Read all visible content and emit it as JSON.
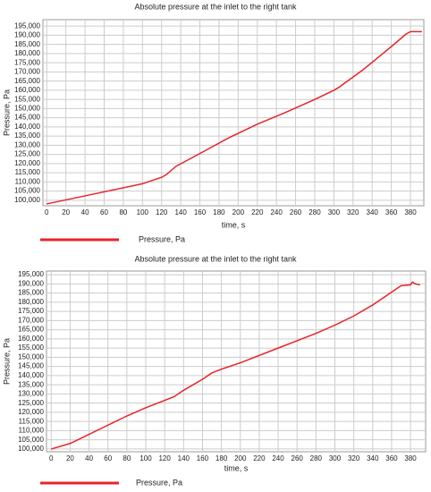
{
  "chart_data": [
    {
      "type": "line",
      "title": "Absolute pressure at the inlet to the right tank",
      "x_label": "time, s",
      "y_label": "Pressure, Pa",
      "grid": true,
      "xlim": [
        -4,
        394
      ],
      "ylim": [
        97000,
        198500
      ],
      "xticks": [
        0,
        20,
        40,
        60,
        80,
        100,
        120,
        140,
        160,
        180,
        200,
        220,
        240,
        260,
        280,
        300,
        320,
        340,
        360,
        380
      ],
      "yticks": [
        {
          "value": 100000,
          "label": "100,000"
        },
        {
          "value": 105000,
          "label": "105,000"
        },
        {
          "value": 110000,
          "label": "110,000"
        },
        {
          "value": 115000,
          "label": "115,000"
        },
        {
          "value": 120000,
          "label": "120,000"
        },
        {
          "value": 125000,
          "label": "125,000"
        },
        {
          "value": 130000,
          "label": "130,000"
        },
        {
          "value": 135000,
          "label": "135,000"
        },
        {
          "value": 140000,
          "label": "140,000"
        },
        {
          "value": 145000,
          "label": "145,000"
        },
        {
          "value": 150000,
          "label": "150,000"
        },
        {
          "value": 155000,
          "label": "155,000"
        },
        {
          "value": 160000,
          "label": "160,000"
        },
        {
          "value": 165000,
          "label": "165,000"
        },
        {
          "value": 170000,
          "label": "170,000"
        },
        {
          "value": 175000,
          "label": "175,000"
        },
        {
          "value": 180000,
          "label": "180,000"
        },
        {
          "value": 185000,
          "label": "185,000"
        },
        {
          "value": 190000,
          "label": "190,000"
        },
        {
          "value": 195000,
          "label": "195,000"
        }
      ],
      "series": [
        {
          "name": "Pressure, Pa",
          "color": "#e8242a",
          "x": [
            0,
            50,
            100,
            120,
            125,
            135,
            160,
            190,
            220,
            250,
            280,
            300,
            305,
            330,
            350,
            365,
            375,
            380,
            392
          ],
          "values": [
            98000,
            103500,
            109000,
            112500,
            114000,
            118500,
            125500,
            134000,
            141500,
            148000,
            155000,
            160000,
            161500,
            171000,
            179500,
            186000,
            190500,
            192000,
            192000
          ]
        }
      ]
    },
    {
      "type": "line",
      "title": "Absolute pressure at the inlet to the right tank",
      "x_label": "time, s",
      "y_label": "Pressure, Pa",
      "grid": true,
      "xlim": [
        -5,
        396
      ],
      "ylim": [
        98500,
        197000
      ],
      "xticks": [
        0,
        20,
        40,
        60,
        80,
        100,
        120,
        140,
        160,
        180,
        200,
        220,
        240,
        260,
        280,
        300,
        320,
        340,
        360,
        380
      ],
      "yticks": [
        {
          "value": 100000,
          "label": "100,000"
        },
        {
          "value": 105000,
          "label": "105,000"
        },
        {
          "value": 110000,
          "label": "110,000"
        },
        {
          "value": 115000,
          "label": "115,000"
        },
        {
          "value": 120000,
          "label": "120,000"
        },
        {
          "value": 125000,
          "label": "125,000"
        },
        {
          "value": 130000,
          "label": "130,000"
        },
        {
          "value": 135000,
          "label": "135,000"
        },
        {
          "value": 140000,
          "label": "140,000"
        },
        {
          "value": 145000,
          "label": "145,000"
        },
        {
          "value": 150000,
          "label": "150,000"
        },
        {
          "value": 155000,
          "label": "155,000"
        },
        {
          "value": 160000,
          "label": "160,000"
        },
        {
          "value": 165000,
          "label": "165,000"
        },
        {
          "value": 170000,
          "label": "170,000"
        },
        {
          "value": 175000,
          "label": "175,000"
        },
        {
          "value": 180000,
          "label": "180,000"
        },
        {
          "value": 185000,
          "label": "185,000"
        },
        {
          "value": 190000,
          "label": "190,000"
        },
        {
          "value": 195000,
          "label": "195,000"
        }
      ],
      "series": [
        {
          "name": "Pressure, Pa",
          "color": "#e8242a",
          "x": [
            0,
            20,
            40,
            60,
            80,
            100,
            120,
            130,
            140,
            160,
            170,
            180,
            200,
            240,
            280,
            300,
            320,
            340,
            370,
            380,
            382,
            385,
            390
          ],
          "values": [
            100000,
            103000,
            108000,
            113000,
            118000,
            122500,
            126500,
            128500,
            132000,
            138000,
            141500,
            143500,
            147000,
            155000,
            163000,
            167500,
            172500,
            178500,
            189000,
            189500,
            191000,
            190000,
            189500
          ]
        }
      ]
    }
  ]
}
